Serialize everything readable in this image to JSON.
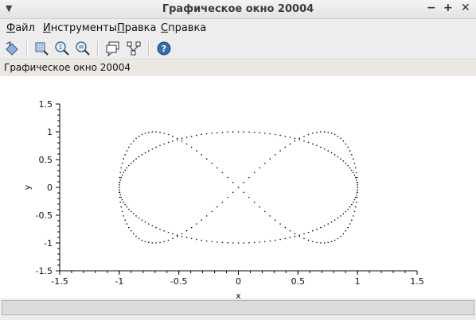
{
  "window": {
    "title": "Графическое окно 20004"
  },
  "menu": {
    "items": [
      {
        "label": "Файл",
        "mnemonic": "Ф",
        "rest": "айл"
      },
      {
        "label": "Инструменты",
        "mnemonic": "И",
        "rest": "нструменты"
      },
      {
        "label": "Правка",
        "mnemonic": "П",
        "rest": "равка"
      },
      {
        "label": "Справка",
        "mnemonic": "С",
        "rest": "правка"
      }
    ]
  },
  "toolbar": {
    "icons": [
      "rotate-icon",
      "zoom-area-icon",
      "zoom-in-icon",
      "zoom-out-icon",
      "datatip-icon",
      "edit-icon",
      "help-icon"
    ]
  },
  "subtitle": "Графическое окно 20004",
  "chart_data": {
    "type": "line",
    "title": "",
    "xlabel": "x",
    "ylabel": "y",
    "xlim": [
      -1.5,
      1.5
    ],
    "ylim": [
      -1.5,
      1.5
    ],
    "x_ticks": [
      "-1.5",
      "-1",
      "-0.5",
      "0",
      "0.5",
      "1",
      "1.5"
    ],
    "y_ticks": [
      "1.5",
      "1",
      "0.5",
      "0",
      "-0.5",
      "-1",
      "-1.5"
    ],
    "line_style": "dotted",
    "color": "#000000",
    "series": [
      {
        "t_range": [
          0,
          6.2832
        ],
        "x": "sin(t)",
        "y": "cos(t)"
      },
      {
        "t_range": [
          0,
          6.2832
        ],
        "x": "cos(t)",
        "y": "sin(2t)"
      }
    ],
    "grid": false
  }
}
